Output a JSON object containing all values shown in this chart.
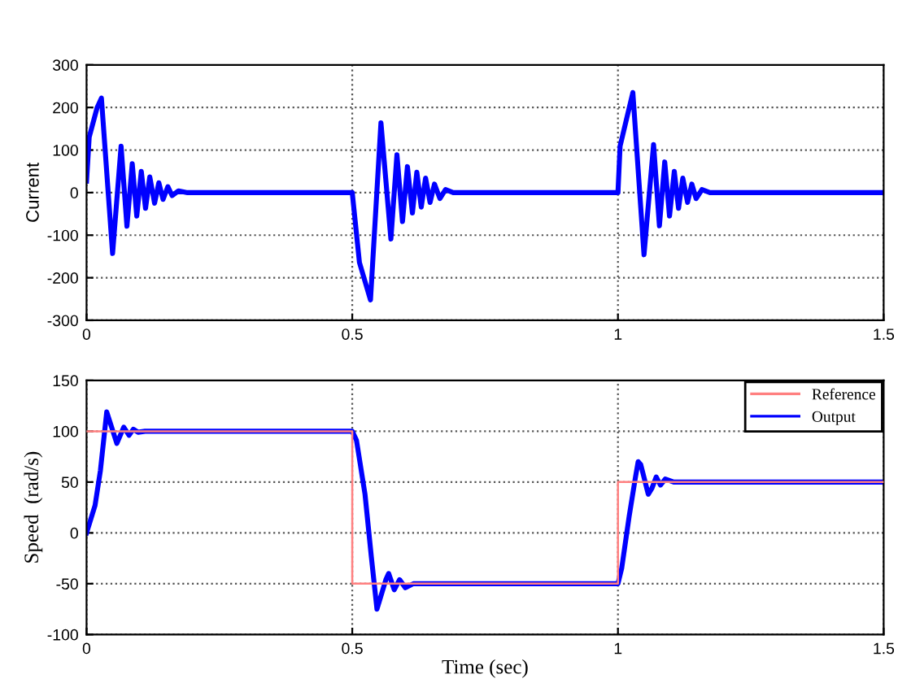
{
  "chart_data": [
    {
      "type": "line",
      "ylabel": "Current",
      "xlim": [
        0,
        1.5
      ],
      "xticks": [
        0,
        0.5,
        1,
        1.5
      ],
      "ylim": [
        -300,
        300
      ],
      "yticks": [
        -300,
        -200,
        -100,
        0,
        100,
        200,
        300
      ],
      "grid": true,
      "legend": false,
      "series": [
        {
          "color": "#0000ff",
          "x": [
            0,
            0.005,
            0.02,
            0.028,
            0.049,
            0.065,
            0.076,
            0.086,
            0.0945,
            0.103,
            0.111,
            0.119,
            0.128,
            0.136,
            0.144,
            0.153,
            0.161,
            0.173,
            0.19,
            0.5,
            0.5135,
            0.5343,
            0.554,
            0.5727,
            0.5841,
            0.5945,
            0.6038,
            0.6132,
            0.6215,
            0.6298,
            0.638,
            0.6464,
            0.6547,
            0.665,
            0.6755,
            0.69,
            1.0,
            1.004,
            1.028,
            1.049,
            1.067,
            1.078,
            1.088,
            1.097,
            1.106,
            1.114,
            1.122,
            1.131,
            1.139,
            1.147,
            1.158,
            1.173,
            1.5
          ],
          "values": [
            27,
            130,
            200,
            222,
            -143,
            109,
            -79,
            68,
            -55,
            50,
            -37,
            37,
            -25,
            23,
            -16,
            14,
            -7,
            4,
            0,
            0,
            -164,
            -252,
            164,
            -109,
            89,
            -68,
            61,
            -48,
            48,
            -34,
            34,
            -23,
            20,
            -14,
            7,
            0,
            0,
            109,
            235,
            -146,
            113,
            -78,
            72,
            -55,
            50,
            -37,
            34,
            -23,
            20,
            -14,
            7,
            0,
            0
          ]
        }
      ]
    },
    {
      "type": "line",
      "xlabel": "Time (sec)",
      "ylabel": "Speed  (rad/s)",
      "xlim": [
        0,
        1.5
      ],
      "xticks": [
        0,
        0.5,
        1,
        1.5
      ],
      "ylim": [
        -100,
        150
      ],
      "yticks": [
        -100,
        -50,
        0,
        50,
        100,
        150
      ],
      "grid": true,
      "legend": "top right",
      "series": [
        {
          "name": "Reference",
          "type": "step",
          "color": "#ff8080",
          "x": [
            0,
            0.5,
            1.0,
            1.5
          ],
          "values": [
            100,
            -50,
            50,
            50
          ]
        },
        {
          "name": "Output",
          "color": "#0000ff",
          "x": [
            0,
            0.016,
            0.026,
            0.038,
            0.057,
            0.07,
            0.08,
            0.088,
            0.097,
            0.11,
            0.5,
            0.508,
            0.524,
            0.536,
            0.5465,
            0.5633,
            0.5685,
            0.579,
            0.589,
            0.6,
            0.615,
            1.0,
            1.007,
            1.021,
            1.033,
            1.038,
            1.043,
            1.057,
            1.064,
            1.072,
            1.08,
            1.089,
            1.105,
            1.5
          ],
          "values": [
            0,
            27,
            61,
            119,
            88,
            104,
            96,
            102,
            99,
            100,
            100,
            91,
            38,
            -24,
            -75,
            -46,
            -40,
            -56,
            -46,
            -54,
            -50,
            -50,
            -35,
            16,
            55,
            70,
            67,
            38,
            44,
            55,
            47,
            53,
            50,
            50
          ]
        }
      ]
    }
  ]
}
